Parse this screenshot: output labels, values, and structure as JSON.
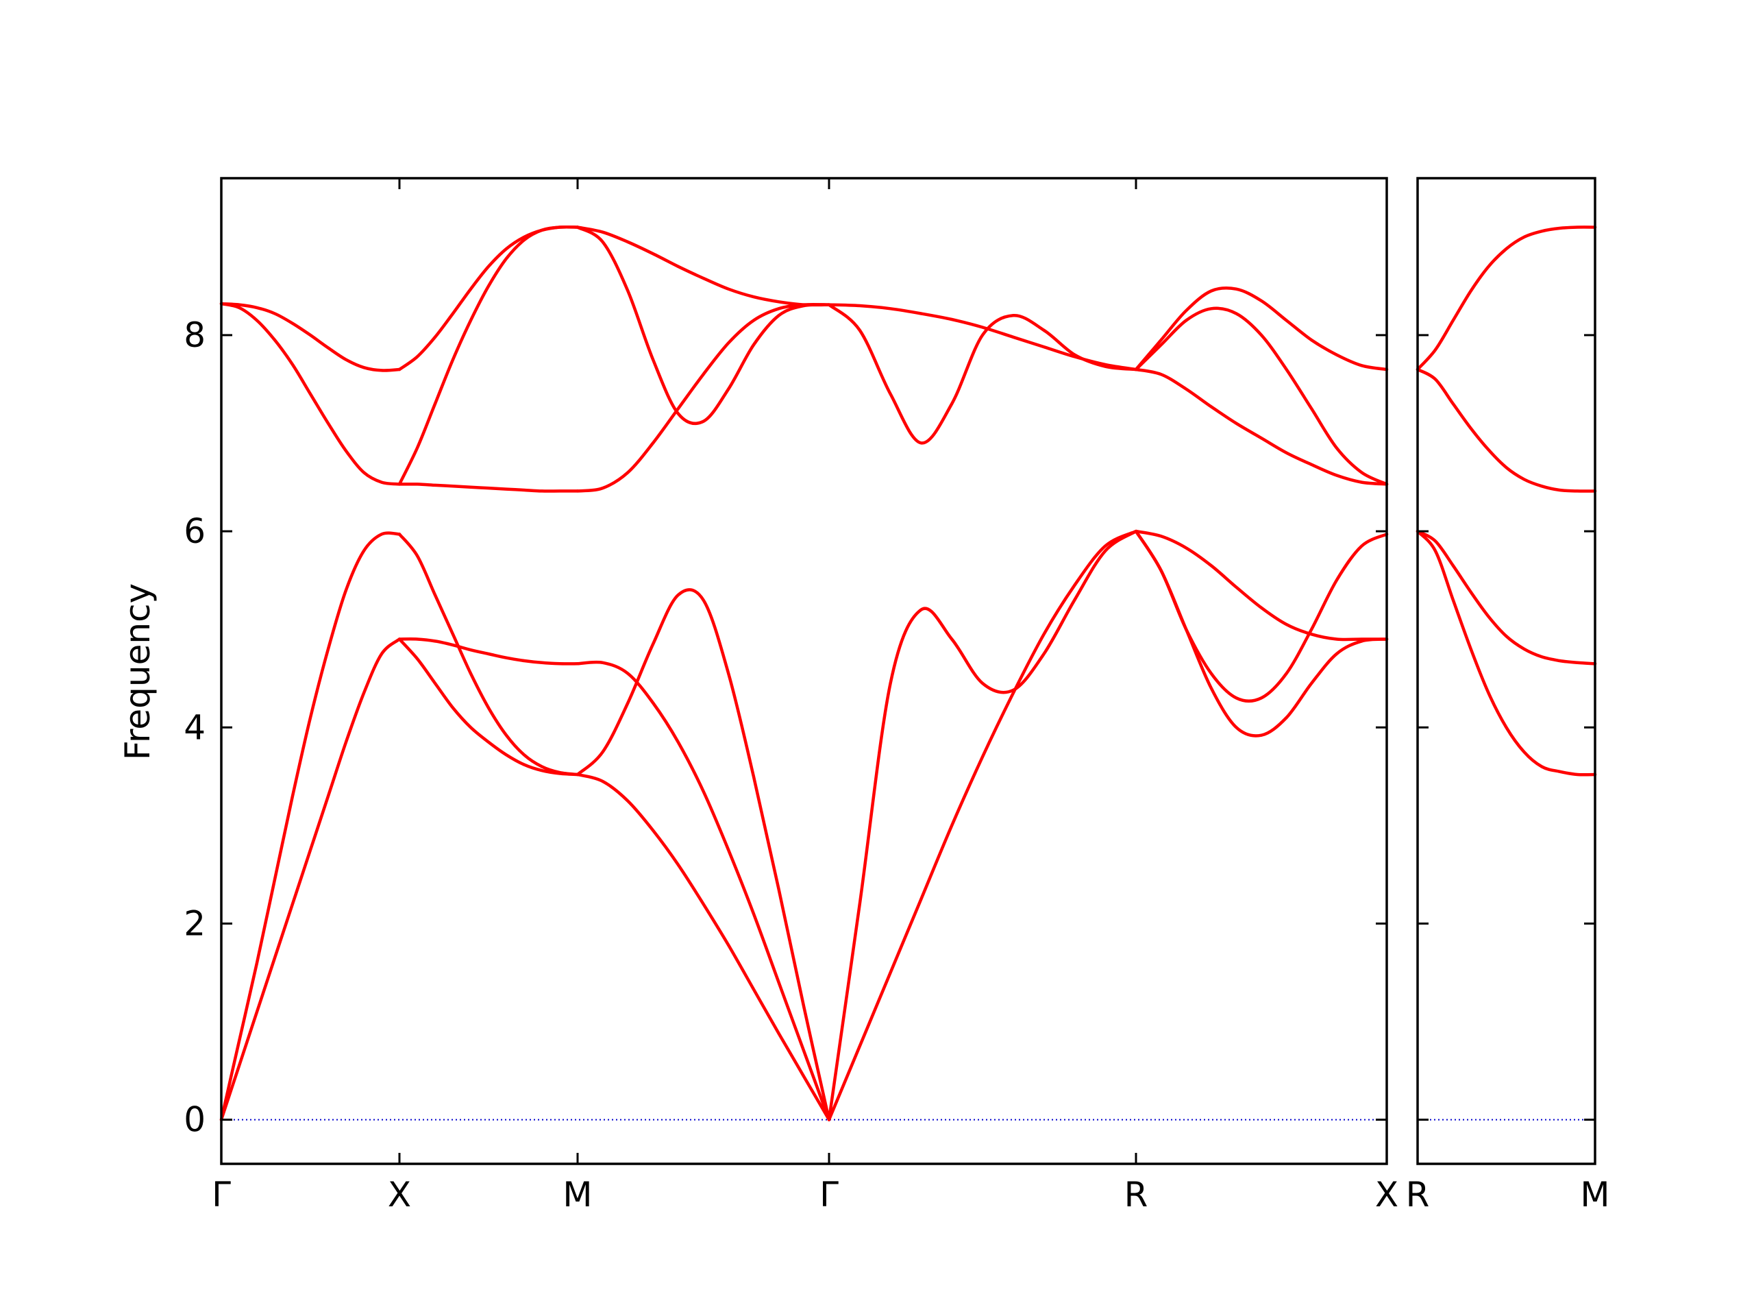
{
  "chart_data": {
    "type": "line",
    "ylabel": "Frequency",
    "ylim": [
      -0.45,
      9.6
    ],
    "yticks": [
      0,
      2,
      4,
      6,
      8
    ],
    "grid": false,
    "legend": "none",
    "band_color": "#ff0000",
    "zero_line_color": "#0000cc",
    "x_tick_labels": [
      "Γ",
      "X",
      "M",
      "Γ",
      "R",
      "X",
      "R",
      "M"
    ],
    "segments": [
      {
        "path": "Γ-X",
        "panel": 0,
        "bands": [
          {
            "x": [
              0,
              0.1,
              0.2,
              0.3,
              0.4,
              0.5,
              0.6,
              0.7,
              0.8,
              0.9,
              1.0
            ],
            "y": [
              0,
              0.55,
              1.1,
              1.65,
              2.2,
              2.75,
              3.3,
              3.85,
              4.35,
              4.75,
              4.9
            ]
          },
          {
            "x": [
              0,
              0.1,
              0.2,
              0.3,
              0.4,
              0.5,
              0.6,
              0.7,
              0.8,
              0.9,
              1.0
            ],
            "y": [
              0,
              0.8,
              1.6,
              2.45,
              3.3,
              4.1,
              4.8,
              5.4,
              5.8,
              5.97,
              5.97
            ]
          },
          {
            "x": [
              0,
              0.1,
              0.2,
              0.3,
              0.4,
              0.5,
              0.6,
              0.7,
              0.8,
              0.9,
              1.0
            ],
            "y": [
              8.32,
              8.28,
              8.15,
              7.95,
              7.7,
              7.4,
              7.1,
              6.82,
              6.6,
              6.5,
              6.48
            ]
          },
          {
            "x": [
              0,
              0.1,
              0.2,
              0.3,
              0.4,
              0.5,
              0.6,
              0.7,
              0.8,
              0.9,
              1.0
            ],
            "y": [
              8.32,
              8.31,
              8.28,
              8.22,
              8.12,
              8.0,
              7.87,
              7.75,
              7.67,
              7.64,
              7.65
            ]
          }
        ]
      },
      {
        "path": "X-M",
        "panel": 0,
        "bands": [
          {
            "x": [
              0,
              0.1,
              0.2,
              0.3,
              0.4,
              0.5,
              0.6,
              0.7,
              0.8,
              0.9,
              1.0
            ],
            "y": [
              4.9,
              4.7,
              4.45,
              4.2,
              4.0,
              3.85,
              3.72,
              3.62,
              3.56,
              3.53,
              3.52
            ]
          },
          {
            "x": [
              0,
              0.1,
              0.2,
              0.3,
              0.4,
              0.5,
              0.6,
              0.7,
              0.8,
              0.9,
              1.0
            ],
            "y": [
              5.97,
              5.75,
              5.35,
              4.95,
              4.55,
              4.2,
              3.92,
              3.72,
              3.6,
              3.54,
              3.52
            ]
          },
          {
            "x": [
              0,
              0.1,
              0.2,
              0.3,
              0.4,
              0.5,
              0.6,
              0.7,
              0.8,
              0.9,
              1.0
            ],
            "y": [
              4.9,
              4.9,
              4.88,
              4.84,
              4.79,
              4.75,
              4.71,
              4.68,
              4.66,
              4.65,
              4.65
            ]
          },
          {
            "x": [
              0,
              0.1,
              0.2,
              0.3,
              0.4,
              0.5,
              0.6,
              0.7,
              0.8,
              0.9,
              1.0
            ],
            "y": [
              6.48,
              6.48,
              6.47,
              6.46,
              6.45,
              6.44,
              6.43,
              6.42,
              6.41,
              6.41,
              6.41
            ]
          },
          {
            "x": [
              0,
              0.1,
              0.2,
              0.3,
              0.4,
              0.5,
              0.6,
              0.7,
              0.8,
              0.9,
              1.0
            ],
            "y": [
              6.48,
              6.85,
              7.3,
              7.75,
              8.15,
              8.5,
              8.78,
              8.97,
              9.07,
              9.1,
              9.1
            ]
          },
          {
            "x": [
              0,
              0.1,
              0.2,
              0.3,
              0.4,
              0.5,
              0.6,
              0.7,
              0.8,
              0.9,
              1.0
            ],
            "y": [
              7.65,
              7.78,
              7.98,
              8.22,
              8.47,
              8.7,
              8.88,
              9.0,
              9.07,
              9.1,
              9.1
            ]
          }
        ]
      },
      {
        "path": "M-Γ",
        "panel": 0,
        "bands": [
          {
            "x": [
              0,
              0.1,
              0.2,
              0.3,
              0.4,
              0.5,
              0.6,
              0.7,
              0.8,
              0.9,
              1.0
            ],
            "y": [
              3.52,
              3.45,
              3.25,
              2.95,
              2.6,
              2.2,
              1.78,
              1.33,
              0.88,
              0.44,
              0
            ]
          },
          {
            "x": [
              0,
              0.1,
              0.2,
              0.3,
              0.4,
              0.5,
              0.6,
              0.7,
              0.8,
              0.9,
              1.0
            ],
            "y": [
              4.65,
              4.66,
              4.55,
              4.25,
              3.85,
              3.35,
              2.75,
              2.1,
              1.4,
              0.7,
              0
            ]
          },
          {
            "x": [
              0,
              0.1,
              0.2,
              0.3,
              0.4,
              0.5,
              0.6,
              0.7,
              0.8,
              0.9,
              1.0
            ],
            "y": [
              3.52,
              3.75,
              4.25,
              4.85,
              5.35,
              5.3,
              4.55,
              3.5,
              2.35,
              1.15,
              0
            ]
          },
          {
            "x": [
              0,
              0.1,
              0.2,
              0.3,
              0.4,
              0.5,
              0.6,
              0.7,
              0.8,
              0.9,
              1.0
            ],
            "y": [
              6.41,
              6.44,
              6.6,
              6.9,
              7.25,
              7.6,
              7.92,
              8.15,
              8.27,
              8.31,
              8.31
            ]
          },
          {
            "x": [
              0,
              0.1,
              0.2,
              0.3,
              0.4,
              0.5,
              0.6,
              0.7,
              0.8,
              0.9,
              1.0
            ],
            "y": [
              9.1,
              8.95,
              8.45,
              7.75,
              7.2,
              7.12,
              7.45,
              7.9,
              8.2,
              8.3,
              8.31
            ]
          },
          {
            "x": [
              0,
              0.1,
              0.2,
              0.3,
              0.4,
              0.5,
              0.6,
              0.7,
              0.8,
              0.9,
              1.0
            ],
            "y": [
              9.1,
              9.05,
              8.95,
              8.83,
              8.7,
              8.58,
              8.47,
              8.39,
              8.34,
              8.31,
              8.31
            ]
          }
        ]
      },
      {
        "path": "Γ-R",
        "panel": 0,
        "bands": [
          {
            "x": [
              0,
              0.1,
              0.2,
              0.3,
              0.4,
              0.5,
              0.6,
              0.7,
              0.8,
              0.9,
              1.0
            ],
            "y": [
              0,
              0.75,
              1.5,
              2.25,
              3.0,
              3.7,
              4.35,
              4.95,
              5.45,
              5.85,
              6.0
            ]
          },
          {
            "x": [
              0,
              0.1,
              0.2,
              0.3,
              0.4,
              0.5,
              0.6,
              0.7,
              0.8,
              0.9,
              1.0
            ],
            "y": [
              0,
              2.2,
              4.45,
              5.2,
              4.9,
              4.45,
              4.38,
              4.75,
              5.3,
              5.8,
              6.0
            ]
          },
          {
            "x": [
              0,
              0.1,
              0.2,
              0.3,
              0.4,
              0.5,
              0.6,
              0.7,
              0.8,
              0.9,
              1.0
            ],
            "y": [
              8.31,
              8.05,
              7.4,
              6.9,
              7.3,
              8.0,
              8.2,
              8.05,
              7.8,
              7.68,
              7.65
            ]
          },
          {
            "x": [
              0,
              0.1,
              0.2,
              0.3,
              0.4,
              0.5,
              0.6,
              0.7,
              0.8,
              0.9,
              1.0
            ],
            "y": [
              8.31,
              8.3,
              8.27,
              8.22,
              8.16,
              8.08,
              7.98,
              7.88,
              7.78,
              7.7,
              7.65
            ]
          }
        ]
      },
      {
        "path": "R-X",
        "panel": 0,
        "bands": [
          {
            "x": [
              0,
              0.1,
              0.2,
              0.3,
              0.4,
              0.5,
              0.6,
              0.7,
              0.8,
              0.9,
              1.0
            ],
            "y": [
              6.0,
              5.6,
              5.0,
              4.4,
              4.0,
              3.92,
              4.1,
              4.45,
              4.75,
              4.88,
              4.9
            ]
          },
          {
            "x": [
              0,
              0.1,
              0.2,
              0.3,
              0.4,
              0.5,
              0.6,
              0.7,
              0.8,
              0.9,
              1.0
            ],
            "y": [
              6.0,
              5.95,
              5.83,
              5.65,
              5.43,
              5.22,
              5.05,
              4.95,
              4.9,
              4.9,
              4.9
            ]
          },
          {
            "x": [
              0,
              0.1,
              0.2,
              0.3,
              0.4,
              0.5,
              0.6,
              0.7,
              0.8,
              0.9,
              1.0
            ],
            "y": [
              6.0,
              5.6,
              5.0,
              4.55,
              4.3,
              4.3,
              4.55,
              5.0,
              5.5,
              5.85,
              5.97
            ]
          },
          {
            "x": [
              0,
              0.1,
              0.2,
              0.3,
              0.4,
              0.5,
              0.6,
              0.7,
              0.8,
              0.9,
              1.0
            ],
            "y": [
              7.65,
              7.6,
              7.45,
              7.27,
              7.1,
              6.95,
              6.8,
              6.68,
              6.57,
              6.5,
              6.48
            ]
          },
          {
            "x": [
              0,
              0.1,
              0.2,
              0.3,
              0.4,
              0.5,
              0.6,
              0.7,
              0.8,
              0.9,
              1.0
            ],
            "y": [
              7.65,
              7.9,
              8.15,
              8.27,
              8.22,
              8.0,
              7.65,
              7.25,
              6.85,
              6.6,
              6.48
            ]
          },
          {
            "x": [
              0,
              0.1,
              0.2,
              0.3,
              0.4,
              0.5,
              0.6,
              0.7,
              0.8,
              0.9,
              1.0
            ],
            "y": [
              7.65,
              7.95,
              8.25,
              8.45,
              8.47,
              8.35,
              8.15,
              7.95,
              7.8,
              7.69,
              7.65
            ]
          }
        ]
      },
      {
        "path": "R-M",
        "panel": 1,
        "bands": [
          {
            "x": [
              0,
              0.1,
              0.2,
              0.3,
              0.4,
              0.5,
              0.6,
              0.7,
              0.8,
              0.9,
              1.0
            ],
            "y": [
              6.0,
              5.8,
              5.3,
              4.8,
              4.35,
              4.0,
              3.75,
              3.6,
              3.55,
              3.52,
              3.52
            ]
          },
          {
            "x": [
              0,
              0.1,
              0.2,
              0.3,
              0.4,
              0.5,
              0.6,
              0.7,
              0.8,
              0.9,
              1.0
            ],
            "y": [
              6.0,
              5.9,
              5.65,
              5.38,
              5.13,
              4.93,
              4.8,
              4.72,
              4.68,
              4.66,
              4.65
            ]
          },
          {
            "x": [
              0,
              0.1,
              0.2,
              0.3,
              0.4,
              0.5,
              0.6,
              0.7,
              0.8,
              0.9,
              1.0
            ],
            "y": [
              7.65,
              7.55,
              7.3,
              7.05,
              6.83,
              6.65,
              6.53,
              6.46,
              6.42,
              6.41,
              6.41
            ]
          },
          {
            "x": [
              0,
              0.1,
              0.2,
              0.3,
              0.4,
              0.5,
              0.6,
              0.7,
              0.8,
              0.9,
              1.0
            ],
            "y": [
              7.65,
              7.85,
              8.15,
              8.45,
              8.7,
              8.88,
              9.0,
              9.06,
              9.09,
              9.1,
              9.1
            ]
          }
        ]
      }
    ]
  }
}
